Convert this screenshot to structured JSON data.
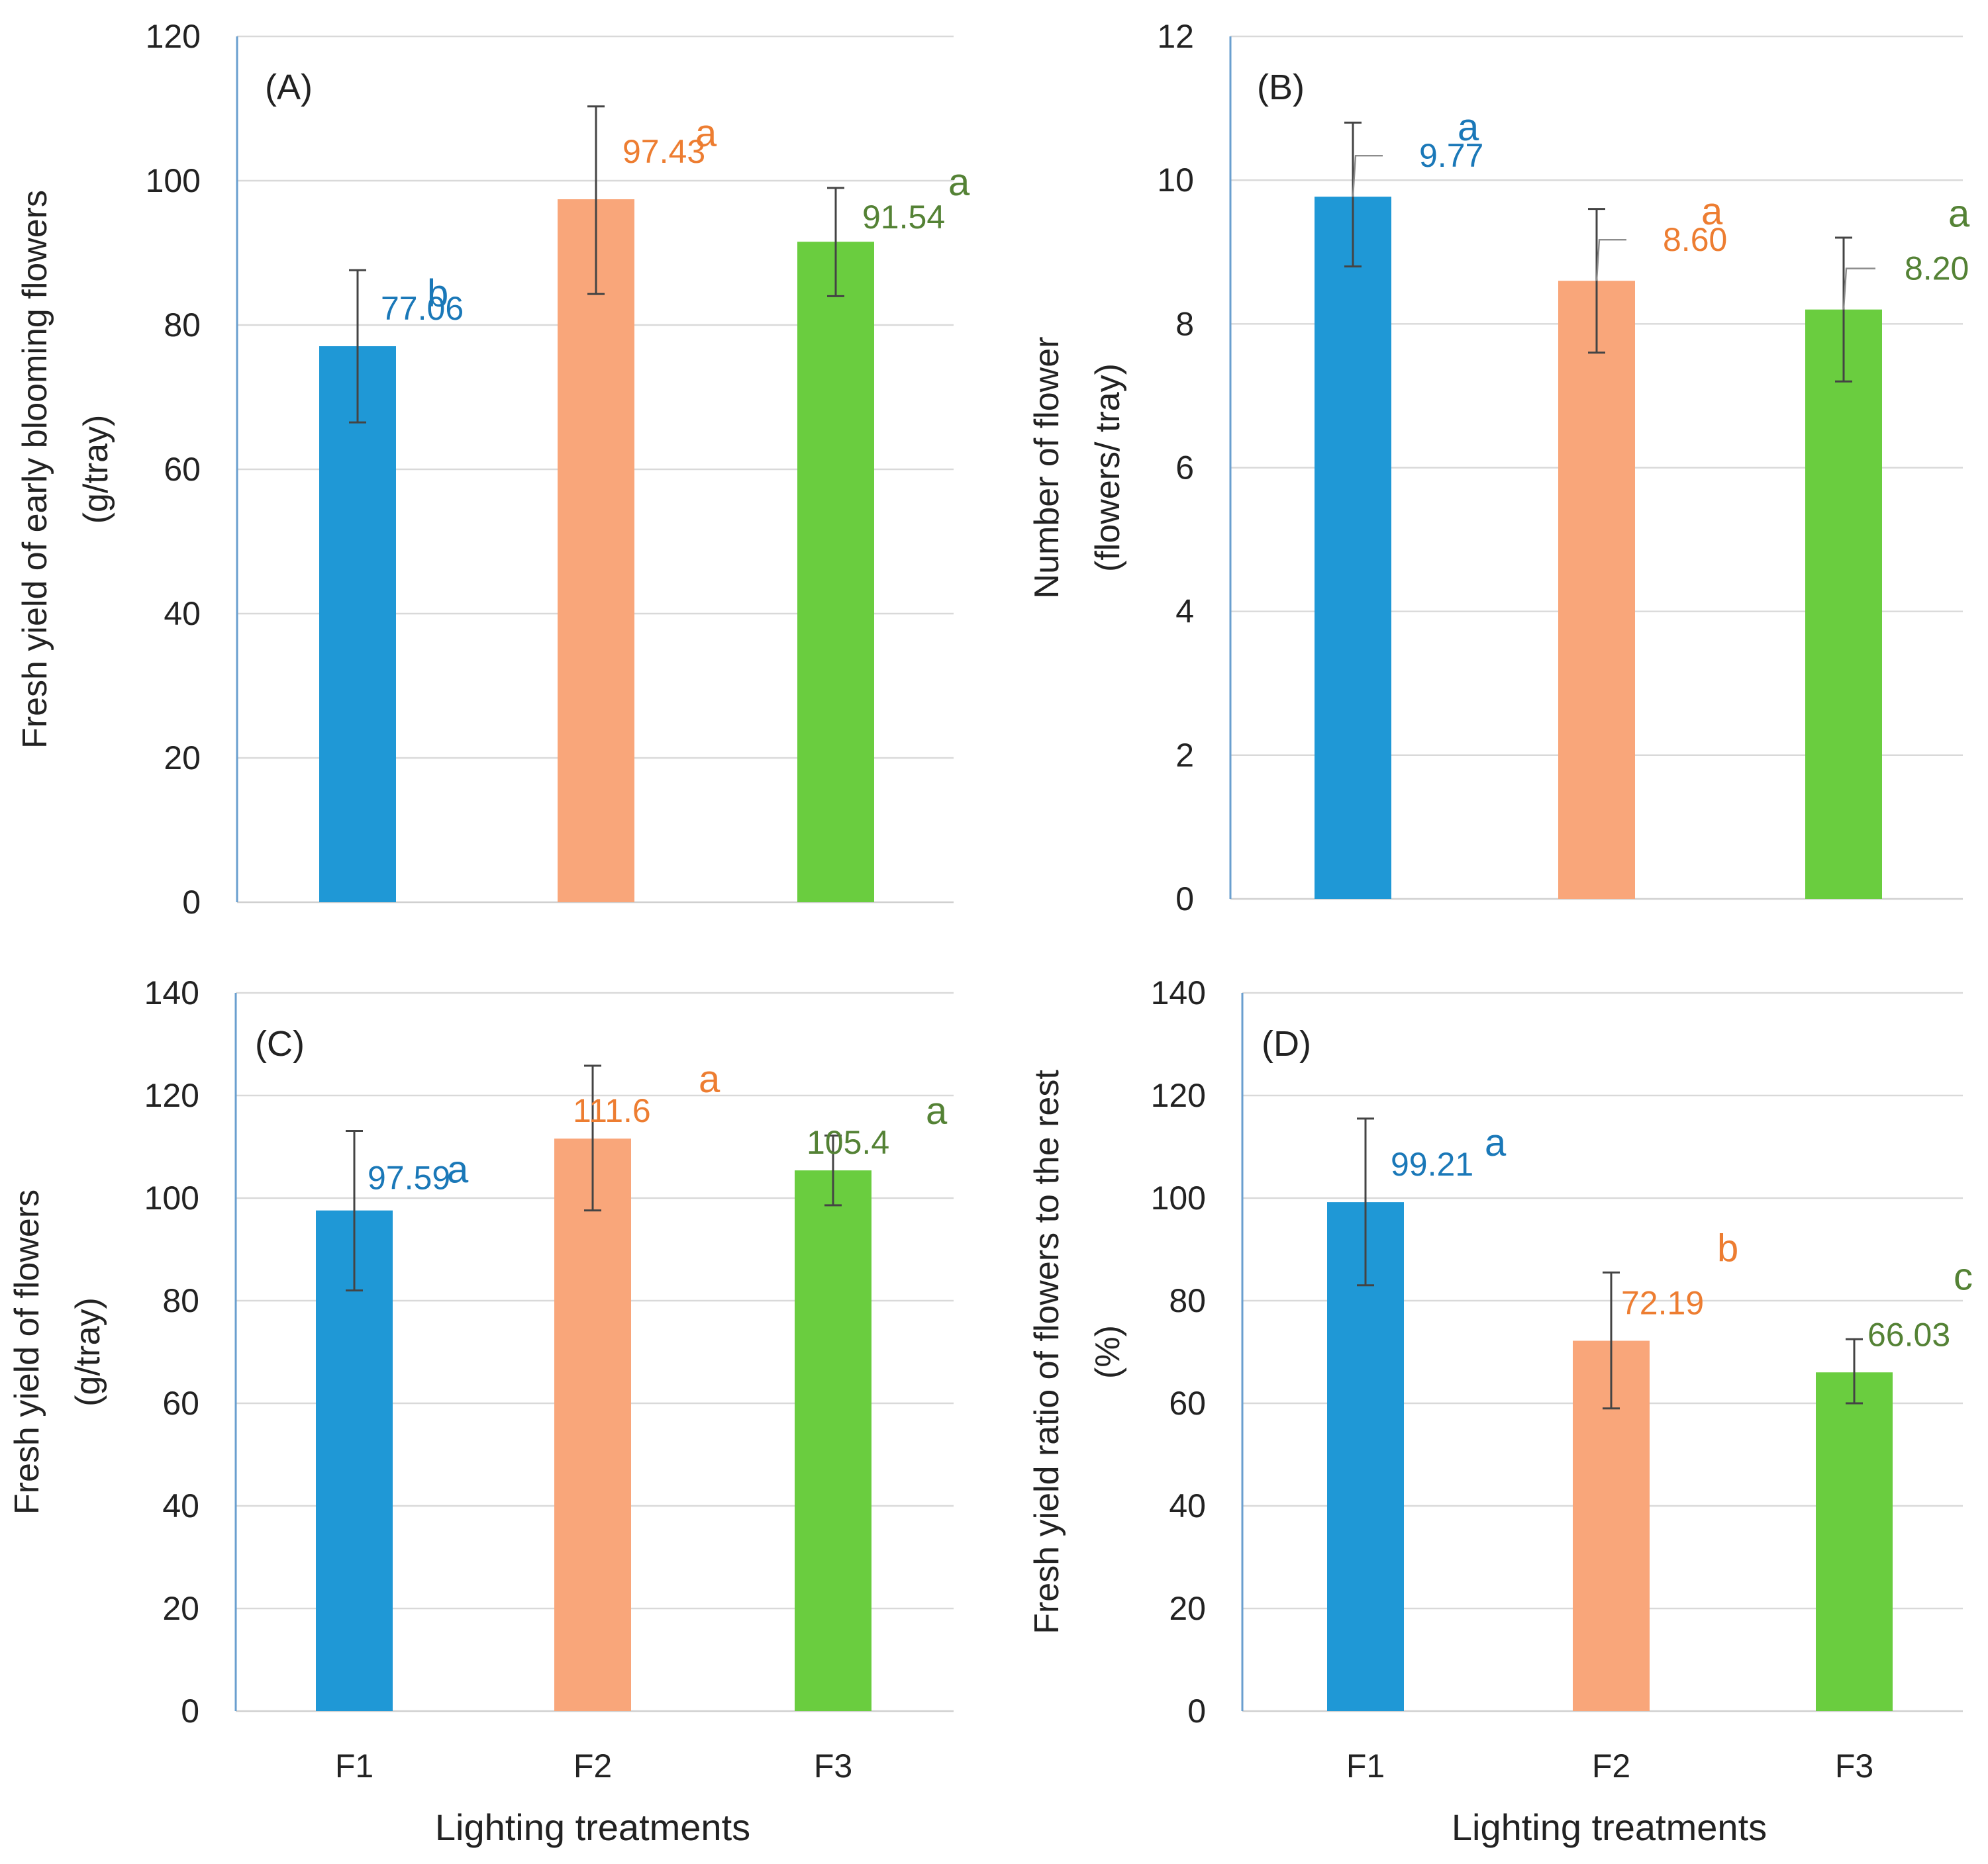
{
  "x_axis_label": "Lighting treatments",
  "colors": {
    "F1": "#1f98d6",
    "F2": "#f9a67a",
    "F3": "#6acd3f"
  },
  "label_colors": {
    "F1": "#1a78b8",
    "F2": "#ed7d31",
    "F3": "#548235"
  },
  "chart_data": [
    {
      "type": "bar",
      "panel": "(A)",
      "categories": [
        "F1",
        "F2",
        "F3"
      ],
      "values": [
        77.06,
        97.43,
        91.54
      ],
      "value_labels": [
        "77.06",
        "97.43",
        "91.54"
      ],
      "error_low": [
        66.5,
        84.3,
        84.0
      ],
      "error_high": [
        87.6,
        110.3,
        99.0
      ],
      "significance": [
        "b",
        "a",
        "a"
      ],
      "ylabel_lines": [
        "Fresh yield of early blooming flowers",
        "(g/tray)"
      ],
      "ylim": [
        0,
        120
      ],
      "yticks": [
        0,
        20,
        40,
        60,
        80,
        100,
        120
      ],
      "grid": true
    },
    {
      "type": "bar",
      "panel": "(B)",
      "categories": [
        "F1",
        "F2",
        "F3"
      ],
      "values": [
        9.77,
        8.6,
        8.2
      ],
      "value_labels": [
        "9.77",
        "8.60",
        "8.20"
      ],
      "error_low": [
        8.8,
        7.6,
        7.2
      ],
      "error_high": [
        10.8,
        9.6,
        9.2
      ],
      "significance": [
        "a",
        "a",
        "a"
      ],
      "ylabel_lines": [
        "Number of flower",
        "(flowers/ tray)"
      ],
      "ylim": [
        0,
        12
      ],
      "yticks": [
        0,
        2,
        4,
        6,
        8,
        10,
        12
      ],
      "grid": true
    },
    {
      "type": "bar",
      "panel": "(C)",
      "categories": [
        "F1",
        "F2",
        "F3"
      ],
      "values": [
        97.59,
        111.6,
        105.4
      ],
      "value_labels": [
        "97.59",
        "111.6",
        "105.4"
      ],
      "error_low": [
        82.0,
        97.6,
        98.6
      ],
      "error_high": [
        113.1,
        125.8,
        112.2
      ],
      "significance": [
        "a",
        "a",
        "a"
      ],
      "ylabel_lines": [
        "Fresh yield of flowers",
        "(g/tray)"
      ],
      "ylim": [
        0,
        140
      ],
      "yticks": [
        0,
        20,
        40,
        60,
        80,
        100,
        120,
        140
      ],
      "grid": true
    },
    {
      "type": "bar",
      "panel": "(D)",
      "categories": [
        "F1",
        "F2",
        "F3"
      ],
      "values": [
        99.21,
        72.19,
        66.03
      ],
      "value_labels": [
        "99.21",
        "72.19",
        "66.03"
      ],
      "error_low": [
        83.0,
        59.0,
        60.0
      ],
      "error_high": [
        115.5,
        85.5,
        72.5
      ],
      "significance": [
        "a",
        "b",
        "c"
      ],
      "ylabel_lines": [
        "Fresh yield ratio of flowers to the rest",
        "(%)"
      ],
      "ylim": [
        0,
        140
      ],
      "yticks": [
        0,
        20,
        40,
        60,
        80,
        100,
        120,
        140
      ],
      "grid": true
    }
  ]
}
